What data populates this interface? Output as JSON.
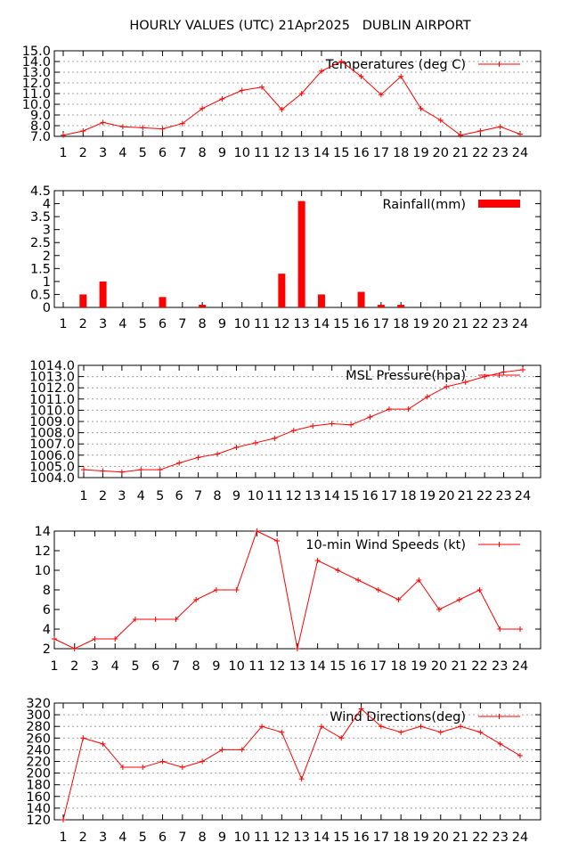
{
  "page_title": "HOURLY VALUES (UTC) 21Apr2025   DUBLIN AIRPORT",
  "colors": {
    "series": "#ff0000",
    "axis": "#000000",
    "grid": "#a0a0a0",
    "background": "#ffffff"
  },
  "chart_data": [
    {
      "type": "line",
      "legend": "Temperatures (deg C)",
      "x": [
        1,
        2,
        3,
        4,
        5,
        6,
        7,
        8,
        9,
        10,
        11,
        12,
        13,
        14,
        15,
        16,
        17,
        18,
        19,
        20,
        21,
        22,
        23,
        24
      ],
      "values": [
        7.1,
        7.5,
        8.3,
        7.9,
        7.8,
        7.7,
        8.2,
        9.6,
        10.5,
        11.3,
        11.6,
        9.5,
        11.0,
        13.1,
        14.0,
        12.6,
        10.9,
        12.6,
        9.6,
        8.5,
        7.1,
        7.5,
        7.9,
        7.2
      ],
      "xlim": [
        1,
        24
      ],
      "ylim": [
        7.0,
        15.0
      ],
      "yticks": [
        7.0,
        8.0,
        9.0,
        10.0,
        11.0,
        12.0,
        13.0,
        14.0,
        15.0
      ],
      "ytick_labels": [
        "7.0",
        "8.0",
        "9.0",
        "10.0",
        "11.0",
        "12.0",
        "13.0",
        "14.0",
        "15.0"
      ],
      "xticks": [
        "1",
        "2",
        "3",
        "4",
        "5",
        "6",
        "7",
        "8",
        "9",
        "10",
        "11",
        "12",
        "13",
        "14",
        "15",
        "16",
        "17",
        "18",
        "19",
        "20",
        "21",
        "22",
        "23",
        "24"
      ],
      "grid": true,
      "legend_position": "top-right"
    },
    {
      "type": "bar",
      "legend": "Rainfall(mm)",
      "x": [
        1,
        2,
        3,
        4,
        5,
        6,
        7,
        8,
        9,
        10,
        11,
        12,
        13,
        14,
        15,
        16,
        17,
        18,
        19,
        20,
        21,
        22,
        23,
        24
      ],
      "values": [
        0,
        0.5,
        1.0,
        0,
        0,
        0.4,
        0,
        0.1,
        0,
        0,
        0,
        1.3,
        4.1,
        0.5,
        0,
        0.6,
        0.1,
        0.1,
        0,
        0,
        0,
        0,
        0,
        0
      ],
      "xlim": [
        1,
        24
      ],
      "ylim": [
        0,
        4.5
      ],
      "yticks": [
        0,
        0.5,
        1,
        1.5,
        2,
        2.5,
        3,
        3.5,
        4,
        4.5
      ],
      "ytick_labels": [
        "0",
        "0.5",
        "1",
        "1.5",
        "2",
        "2.5",
        "3",
        "3.5",
        "4",
        "4.5"
      ],
      "xticks": [
        "1",
        "2",
        "3",
        "4",
        "5",
        "6",
        "7",
        "8",
        "9",
        "10",
        "11",
        "12",
        "13",
        "14",
        "15",
        "16",
        "17",
        "18",
        "19",
        "20",
        "21",
        "22",
        "23",
        "24"
      ],
      "grid": false,
      "legend_position": "top-right"
    },
    {
      "type": "line",
      "legend": "MSL Pressure(hpa)",
      "x": [
        1,
        2,
        3,
        4,
        5,
        6,
        7,
        8,
        9,
        10,
        11,
        12,
        13,
        14,
        15,
        16,
        17,
        18,
        19,
        20,
        21,
        22,
        23,
        24
      ],
      "values": [
        1004.7,
        1004.6,
        1004.5,
        1004.7,
        1004.7,
        1005.3,
        1005.8,
        1006.1,
        1006.7,
        1007.1,
        1007.5,
        1008.2,
        1008.6,
        1008.8,
        1008.7,
        1009.4,
        1010.1,
        1010.1,
        1011.2,
        1012.1,
        1012.5,
        1013.0,
        1013.4,
        1013.6
      ],
      "xlim": [
        1,
        24
      ],
      "ylim": [
        1004.0,
        1014.0
      ],
      "yticks": [
        1004,
        1005,
        1006,
        1007,
        1008,
        1009,
        1010,
        1011,
        1012,
        1013,
        1014
      ],
      "ytick_labels": [
        "1004.0",
        "1005.0",
        "1006.0",
        "1007.0",
        "1008.0",
        "1009.0",
        "1010.0",
        "1011.0",
        "1012.0",
        "1013.0",
        "1014.0"
      ],
      "xticks": [
        "1",
        "2",
        "3",
        "4",
        "5",
        "6",
        "7",
        "8",
        "9",
        "10",
        "11",
        "12",
        "13",
        "14",
        "15",
        "16",
        "17",
        "18",
        "19",
        "20",
        "21",
        "22",
        "23",
        "24"
      ],
      "grid": true,
      "legend_position": "top-right"
    },
    {
      "type": "line",
      "legend": "10-min Wind Speeds (kt)",
      "x": [
        1,
        2,
        3,
        4,
        5,
        6,
        7,
        8,
        9,
        10,
        11,
        12,
        13,
        14,
        15,
        16,
        17,
        18,
        19,
        20,
        21,
        22,
        23,
        24
      ],
      "values": [
        3,
        2,
        3,
        3,
        5,
        5,
        5,
        7,
        8,
        8,
        14,
        13,
        2,
        11,
        10,
        9,
        8,
        7,
        9,
        6,
        7,
        8,
        4,
        4
      ],
      "xlim": [
        1,
        24
      ],
      "ylim": [
        2,
        14
      ],
      "yticks": [
        2,
        4,
        6,
        8,
        10,
        12,
        14
      ],
      "ytick_labels": [
        "2",
        "4",
        "6",
        "8",
        "10",
        "12",
        "14"
      ],
      "xticks": [
        "1",
        "2",
        "3",
        "4",
        "5",
        "6",
        "7",
        "8",
        "9",
        "10",
        "11",
        "12",
        "13",
        "14",
        "15",
        "16",
        "17",
        "18",
        "19",
        "20",
        "21",
        "22",
        "23",
        "24"
      ],
      "grid": false,
      "legend_position": "top-right"
    },
    {
      "type": "line",
      "legend": "Wind Directions(deg)",
      "x": [
        1,
        2,
        3,
        4,
        5,
        6,
        7,
        8,
        9,
        10,
        11,
        12,
        13,
        14,
        15,
        16,
        17,
        18,
        19,
        20,
        21,
        22,
        23,
        24
      ],
      "values": [
        120,
        260,
        250,
        210,
        210,
        220,
        210,
        220,
        240,
        240,
        280,
        270,
        190,
        280,
        260,
        310,
        280,
        270,
        280,
        270,
        280,
        270,
        250,
        230
      ],
      "xlim": [
        1,
        24
      ],
      "ylim": [
        120,
        320
      ],
      "yticks": [
        120,
        140,
        160,
        180,
        200,
        220,
        240,
        260,
        280,
        300,
        320
      ],
      "ytick_labels": [
        "120",
        "140",
        "160",
        "180",
        "200",
        "220",
        "240",
        "260",
        "280",
        "300",
        "320"
      ],
      "xticks": [
        "1",
        "2",
        "3",
        "4",
        "5",
        "6",
        "7",
        "8",
        "9",
        "10",
        "11",
        "12",
        "13",
        "14",
        "15",
        "16",
        "17",
        "18",
        "19",
        "20",
        "21",
        "22",
        "23",
        "24"
      ],
      "grid": true,
      "legend_position": "top-right"
    }
  ]
}
